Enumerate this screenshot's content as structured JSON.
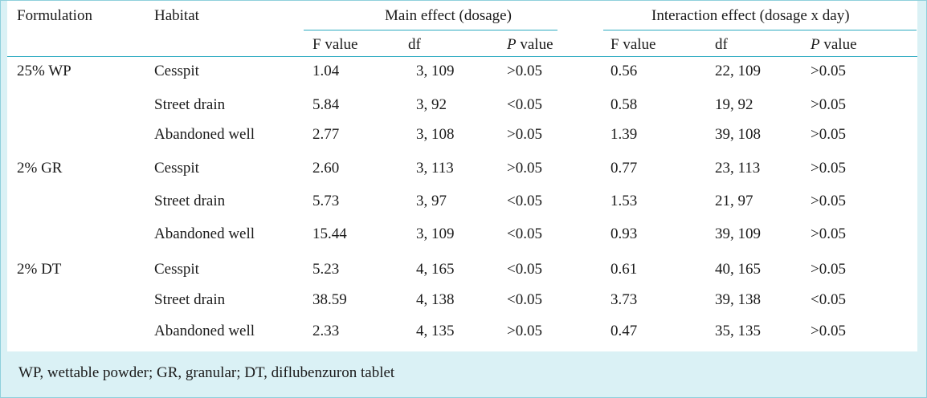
{
  "headers": {
    "formulation": "Formulation",
    "habitat": "Habitat",
    "main_effect": "Main effect (dosage)",
    "interaction_effect": "Interaction effect (dosage x day)",
    "f_value": "F value",
    "df": "df",
    "p_italic": "P",
    "p_suffix": " value"
  },
  "rows": [
    {
      "formulation": "25% WP",
      "habitat": "Cesspit",
      "main_f": "1.04",
      "main_df": "3, 109",
      "main_p": ">0.05",
      "int_f": "0.56",
      "int_df": "22, 109",
      "int_p": ">0.05"
    },
    {
      "formulation": "",
      "habitat": "Street drain",
      "main_f": "5.84",
      "main_df": "3, 92",
      "main_p": "<0.05",
      "int_f": "0.58",
      "int_df": "19, 92",
      "int_p": ">0.05"
    },
    {
      "formulation": "",
      "habitat": "Abandoned well",
      "main_f": "2.77",
      "main_df": "3, 108",
      "main_p": ">0.05",
      "int_f": "1.39",
      "int_df": "39, 108",
      "int_p": ">0.05"
    },
    {
      "formulation": "2% GR",
      "habitat": "Cesspit",
      "main_f": "2.60",
      "main_df": "3, 113",
      "main_p": ">0.05",
      "int_f": "0.77",
      "int_df": "23, 113",
      "int_p": ">0.05"
    },
    {
      "formulation": "",
      "habitat": "Street drain",
      "main_f": "5.73",
      "main_df": "3, 97",
      "main_p": "<0.05",
      "int_f": "1.53",
      "int_df": "21, 97",
      "int_p": ">0.05"
    },
    {
      "formulation": "",
      "habitat": "Abandoned well",
      "main_f": "15.44",
      "main_df": "3, 109",
      "main_p": "<0.05",
      "int_f": "0.93",
      "int_df": "39, 109",
      "int_p": ">0.05"
    },
    {
      "formulation": "2% DT",
      "habitat": "Cesspit",
      "main_f": "5.23",
      "main_df": "4, 165",
      "main_p": "<0.05",
      "int_f": "0.61",
      "int_df": "40, 165",
      "int_p": ">0.05"
    },
    {
      "formulation": "",
      "habitat": "Street drain",
      "main_f": "38.59",
      "main_df": "4, 138",
      "main_p": "<0.05",
      "int_f": "3.73",
      "int_df": "39, 138",
      "int_p": "<0.05"
    },
    {
      "formulation": "",
      "habitat": "Abandoned well",
      "main_f": "2.33",
      "main_df": "4, 135",
      "main_p": ">0.05",
      "int_f": "0.47",
      "int_df": "35, 135",
      "int_p": ">0.05"
    }
  ],
  "footnote": "WP, wettable powder; GR, granular; DT, diflubenzuron tablet"
}
